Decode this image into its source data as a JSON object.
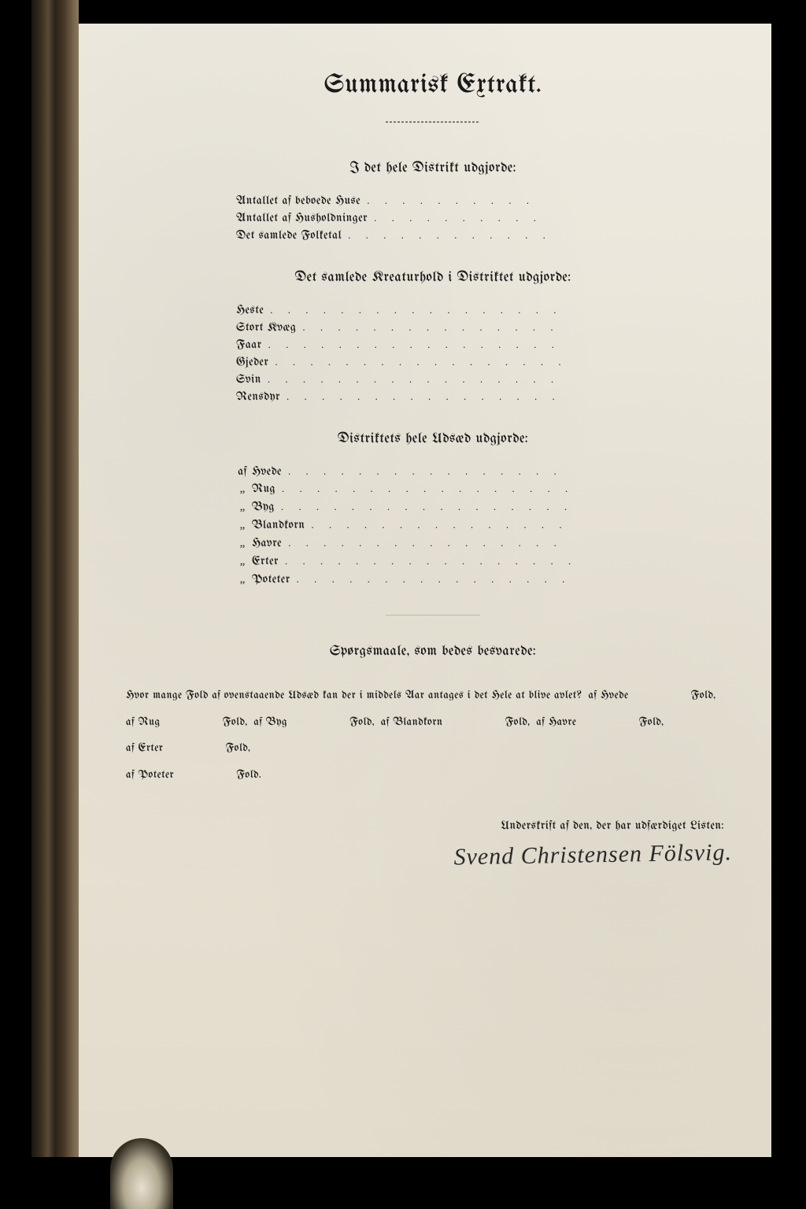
{
  "colors": {
    "page_bg": "#e8e3d6",
    "ink": "#1a1a1a",
    "scan_bg": "#000000"
  },
  "title": "Summarisk Extrakt.",
  "section1": {
    "heading": "I det hele Distrikt udgjorde:",
    "items": [
      "Antallet af beboede Huse",
      "Antallet af Husholdninger",
      "Det samlede Folketal"
    ]
  },
  "section2": {
    "heading": "Det samlede Kreaturhold i Distriktet udgjorde:",
    "items": [
      "Heste",
      "Stort Kvæg",
      "Faar",
      "Gjeder",
      "Svin",
      "Rensdyr"
    ]
  },
  "section3": {
    "heading": "Distriktets hele Udsæd udgjorde:",
    "first_prefix": "af",
    "ditto": "„",
    "items": [
      "Hvede",
      "Rug",
      "Byg",
      "Blandkorn",
      "Havre",
      "Erter",
      "Poteter"
    ]
  },
  "section4": {
    "heading": "Spørgsmaale, som bedes besvarede:",
    "lead": "Hvor mange Fold af ovenstaaende Udsæd kan der i middels Aar antages i det Hele at blive avlet?",
    "grains": [
      "Hvede",
      "Rug",
      "Byg",
      "Blandkorn",
      "Havre",
      "Erter",
      "Poteter"
    ],
    "unit": "Fold",
    "prefix": "af"
  },
  "signature_label": "Underskrift af den, der har udfærdiget Listen:",
  "signature": "Svend Christensen Fölsvig."
}
